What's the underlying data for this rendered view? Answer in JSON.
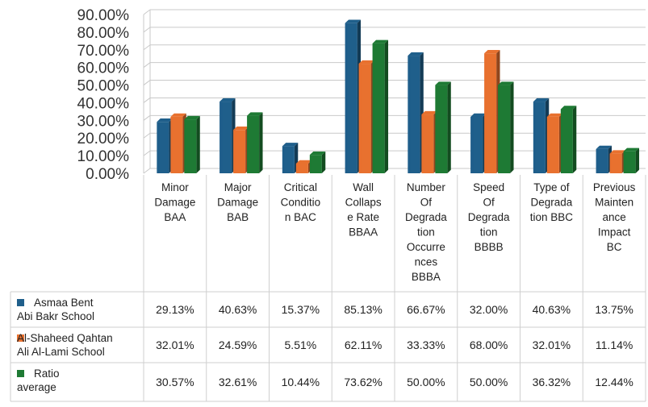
{
  "chart_data": {
    "type": "bar",
    "title": "",
    "xlabel": "",
    "ylabel": "",
    "ylim": [
      0,
      90
    ],
    "yticks": [
      "0.00%",
      "10.00%",
      "20.00%",
      "30.00%",
      "40.00%",
      "50.00%",
      "60.00%",
      "70.00%",
      "80.00%",
      "90.00%"
    ],
    "grid": true,
    "legend": "data-table-left",
    "categories": [
      [
        "Minor",
        "Damage",
        "BAA"
      ],
      [
        "Major",
        "Damage",
        "BAB"
      ],
      [
        "Critical",
        "Conditio",
        "n BAC"
      ],
      [
        "Wall",
        "Collaps",
        "e Rate",
        "BBAA"
      ],
      [
        "Number",
        "Of",
        "Degrada",
        "tion",
        "Occurre",
        "nces",
        "BBBA"
      ],
      [
        "Speed",
        "Of",
        "Degrada",
        "tion",
        "BBBB"
      ],
      [
        "Type of",
        "Degrada",
        "tion BBC"
      ],
      [
        "Previous",
        "Mainten",
        "ance",
        "Impact",
        "BC"
      ]
    ],
    "series": [
      {
        "name": [
          "Asmaa Bent",
          "Abi Bakr School"
        ],
        "color": "#1f5f8b",
        "values": [
          29.13,
          40.63,
          15.37,
          85.13,
          66.67,
          32.0,
          40.63,
          13.75
        ],
        "labels": [
          "29.13%",
          "40.63%",
          "15.37%",
          "85.13%",
          "66.67%",
          "32.00%",
          "40.63%",
          "13.75%"
        ]
      },
      {
        "name": [
          "Al-Shaheed Qahtan",
          "Ali Al-Lami School"
        ],
        "color": "#e8712f",
        "values": [
          32.01,
          24.59,
          5.51,
          62.11,
          33.33,
          68.0,
          32.01,
          11.14
        ],
        "labels": [
          "32.01%",
          "24.59%",
          "5.51%",
          "62.11%",
          "33.33%",
          "68.00%",
          "32.01%",
          "11.14%"
        ]
      },
      {
        "name": [
          "Ratio",
          "average"
        ],
        "color": "#1e7a34",
        "values": [
          30.57,
          32.61,
          10.44,
          73.62,
          50.0,
          50.0,
          36.32,
          12.44
        ],
        "labels": [
          "30.57%",
          "32.61%",
          "10.44%",
          "73.62%",
          "50.00%",
          "50.00%",
          "36.32%",
          "12.44%"
        ]
      }
    ]
  }
}
